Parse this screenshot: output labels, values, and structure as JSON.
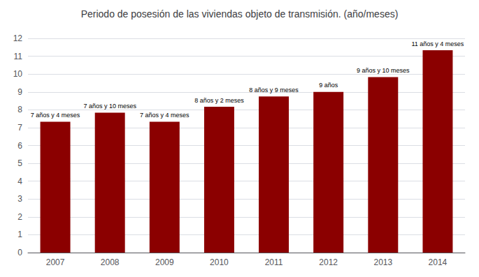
{
  "chart_data": {
    "type": "bar",
    "title": "Periodo de posesión de las viviendas objeto de transmisión. (año/meses)",
    "categories": [
      "2007",
      "2008",
      "2009",
      "2010",
      "2011",
      "2012",
      "2013",
      "2014"
    ],
    "values": [
      7.333,
      7.833,
      7.333,
      8.167,
      8.75,
      9.0,
      9.833,
      11.333
    ],
    "value_labels": [
      "7 años y 4 meses",
      "7 años y 10 meses",
      "7 años y 4 meses",
      "8 años y 2 meses",
      "8 años y 9 meses",
      "9 años",
      "9 años y 10 meses",
      "11 años y 4 meses"
    ],
    "data_labels": true,
    "color": "#8B0000",
    "ylim": [
      0,
      12
    ],
    "yticks": [
      0,
      1,
      2,
      3,
      4,
      5,
      6,
      7,
      8,
      9,
      10,
      11,
      12
    ],
    "grid": true
  }
}
